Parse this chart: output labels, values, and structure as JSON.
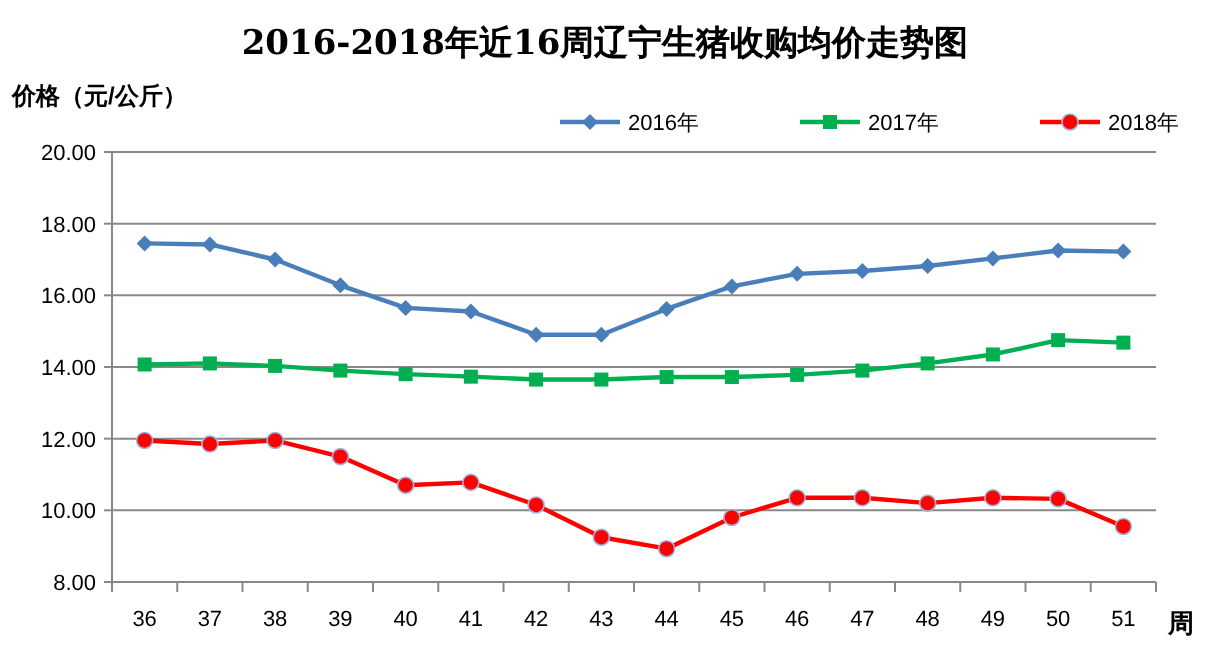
{
  "chart_data": {
    "type": "line",
    "title": "2016-2018年近16周辽宁生猪收购均价走势图",
    "ylabel": "价格（元/公斤）",
    "xlabel": "周",
    "categories": [
      "36",
      "37",
      "38",
      "39",
      "40",
      "41",
      "42",
      "43",
      "44",
      "45",
      "46",
      "47",
      "48",
      "49",
      "50",
      "51"
    ],
    "series": [
      {
        "name": "2016年",
        "color": "#4a7ebb",
        "marker": "diamond",
        "values": [
          17.45,
          17.42,
          17.0,
          16.28,
          15.65,
          15.55,
          14.9,
          14.9,
          15.62,
          16.25,
          16.6,
          16.68,
          16.82,
          17.03,
          17.25,
          17.22
        ]
      },
      {
        "name": "2017年",
        "color": "#00b050",
        "marker": "square",
        "values": [
          14.07,
          14.1,
          14.03,
          13.9,
          13.8,
          13.73,
          13.65,
          13.65,
          13.72,
          13.72,
          13.78,
          13.9,
          14.1,
          14.35,
          14.75,
          14.68
        ]
      },
      {
        "name": "2018年",
        "color": "#ff0000",
        "marker": "circle",
        "values": [
          11.95,
          11.85,
          11.95,
          11.5,
          10.7,
          10.78,
          10.15,
          9.25,
          8.93,
          9.8,
          10.35,
          10.35,
          10.2,
          10.35,
          10.32,
          9.55
        ]
      }
    ],
    "ylim": [
      8,
      20
    ],
    "yticks": [
      {
        "value": 8,
        "label": "8.00"
      },
      {
        "value": 10,
        "label": "10.00"
      },
      {
        "value": 12,
        "label": "12.00"
      },
      {
        "value": 14,
        "label": "14.00"
      },
      {
        "value": 16,
        "label": "16.00"
      },
      {
        "value": 18,
        "label": "18.00"
      },
      {
        "value": 20,
        "label": "20.00"
      }
    ],
    "grid": "y",
    "legend": "top right"
  }
}
